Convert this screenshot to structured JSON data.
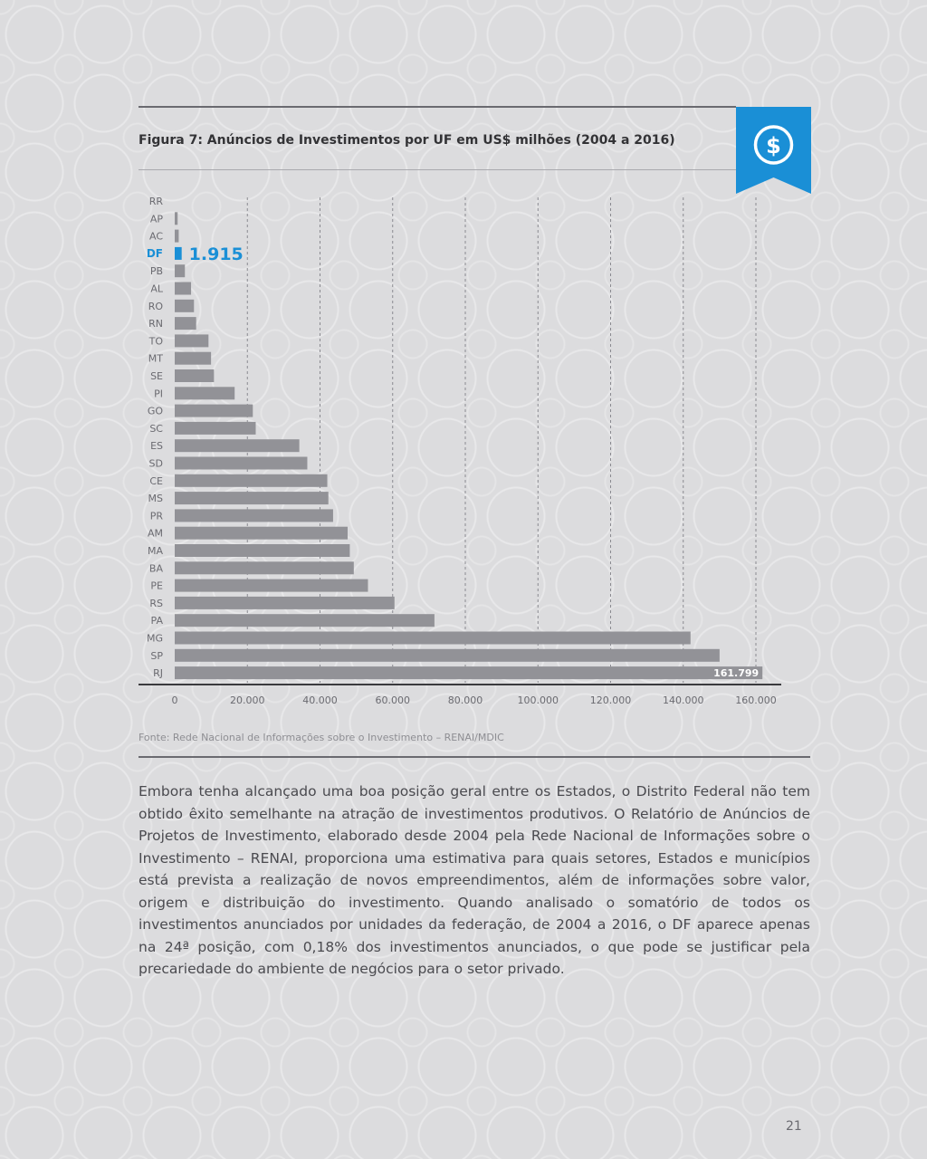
{
  "figure": {
    "title": "Figura 7: Anúncios de Investimentos por UF em US$ milhões (2004 a 2016)",
    "icon": "dollar-icon",
    "icon_color": "#1a8fd6",
    "source": "Fonte: Rede Nacional de Informações sobre o Investimento – RENAI/MDIC"
  },
  "chart_data": {
    "type": "bar",
    "orientation": "horizontal",
    "categories": [
      "RR",
      "AP",
      "AC",
      "DF",
      "PB",
      "AL",
      "RO",
      "RN",
      "TO",
      "MT",
      "SE",
      "PI",
      "GO",
      "SC",
      "ES",
      "SD",
      "CE",
      "MS",
      "PR",
      "AM",
      "MA",
      "BA",
      "PE",
      "RS",
      "PA",
      "MG",
      "SP",
      "RJ"
    ],
    "values": [
      0,
      800,
      1100,
      1915,
      2800,
      4500,
      5300,
      5900,
      9300,
      10000,
      10800,
      16500,
      21500,
      22300,
      34300,
      36500,
      42000,
      42300,
      43600,
      47600,
      48200,
      49300,
      53200,
      60500,
      71500,
      142000,
      150000,
      161799
    ],
    "highlight": {
      "category": "DF",
      "label": "1.915",
      "color": "#1a8fd6"
    },
    "end_label": {
      "category": "RJ",
      "label": "161.799"
    },
    "xticks": [
      "0",
      "20.000",
      "40.000",
      "60.000",
      "80.000",
      "100.000",
      "120.000",
      "140.000",
      "160.000"
    ],
    "xlim": [
      0,
      160000
    ],
    "bar_color": "#929297",
    "grid": "vertical dashed"
  },
  "body": {
    "paragraph": "Embora tenha alcançado uma boa posição geral entre os Estados, o Distrito Federal não tem obtido êxito semelhante na atração de investimentos produtivos. O Relatório de Anúncios de Projetos de Investimento, elaborado desde 2004 pela Rede Nacional de Informações sobre o Investimento – RENAI, proporciona uma estimativa para quais setores, Estados e municípios está prevista a realização de novos empreendimentos, além de informações sobre valor, origem e distribuição do investimento. Quando analisado o somatório de todos os investimentos anunciados por unidades da federação, de 2004 a 2016, o DF aparece apenas na 24ª posição, com 0,18% dos investimentos anunciados, o que pode se justificar pela precariedade do ambiente de negócios para o setor privado."
  },
  "page": {
    "number": "21"
  }
}
